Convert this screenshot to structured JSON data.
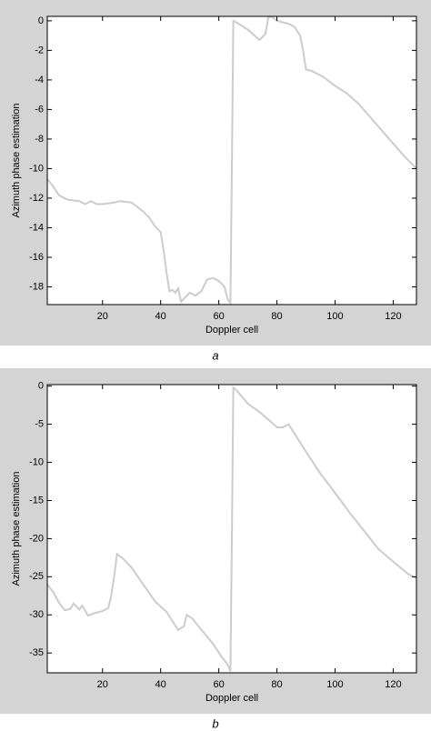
{
  "chart_data": [
    {
      "type": "line",
      "x_label": "Doppler cell",
      "y_label": "Azimuth phase estimation",
      "caption": "a",
      "xlim": [
        1,
        128
      ],
      "xticks": [
        20,
        40,
        60,
        80,
        100,
        120
      ],
      "ylim": [
        -19.2,
        0.3
      ],
      "yticks": [
        0,
        -2,
        -4,
        -6,
        -8,
        -10,
        -12,
        -14,
        -16,
        -18
      ],
      "color": "#cccccc",
      "x": [
        1,
        3,
        5,
        8,
        12,
        14,
        16,
        18,
        20,
        24,
        26,
        30,
        32,
        34,
        36,
        38,
        40,
        41,
        42,
        43,
        44,
        45,
        46,
        47,
        48,
        50,
        52,
        54,
        56,
        58,
        60,
        62,
        63,
        64,
        64.5,
        65,
        66,
        70,
        74,
        76,
        77,
        78,
        80,
        84,
        86,
        88,
        89,
        90,
        92,
        96,
        100,
        104,
        108,
        112,
        116,
        120,
        124,
        128
      ],
      "values": [
        -10.7,
        -11.2,
        -11.8,
        -12.1,
        -12.2,
        -12.4,
        -12.2,
        -12.4,
        -12.4,
        -12.3,
        -12.2,
        -12.3,
        -12.6,
        -12.9,
        -13.3,
        -13.9,
        -14.3,
        -15.5,
        -17,
        -18.3,
        -18.2,
        -18.4,
        -18.1,
        -19.0,
        -18.8,
        -18.4,
        -18.6,
        -18.3,
        -17.5,
        -17.4,
        -17.6,
        -18.0,
        -18.8,
        -19.1,
        -10,
        0,
        -0.1,
        -0.6,
        -1.3,
        -0.9,
        0.2,
        0.3,
        0.0,
        -0.2,
        -0.4,
        -1.0,
        -2,
        -3.3,
        -3.4,
        -3.8,
        -4.4,
        -4.9,
        -5.6,
        -6.5,
        -7.4,
        -8.3,
        -9.2,
        -10.0
      ]
    },
    {
      "type": "line",
      "x_label": "Doppler cell",
      "y_label": "Azimuth phase estimation",
      "caption": "b",
      "xlim": [
        1,
        128
      ],
      "xticks": [
        20,
        40,
        60,
        80,
        100,
        120
      ],
      "ylim": [
        -37.6,
        0.2
      ],
      "yticks": [
        0,
        -5,
        -10,
        -15,
        -20,
        -25,
        -30,
        -35
      ],
      "color": "#cccccc",
      "x": [
        1,
        3,
        5,
        7,
        9,
        10,
        12,
        13,
        15,
        17,
        20,
        22,
        23,
        24,
        25,
        27,
        30,
        34,
        38,
        42,
        44,
        46,
        48,
        49,
        51,
        53,
        55,
        58,
        61,
        63,
        64,
        64.5,
        65,
        66,
        70,
        74,
        78,
        80,
        82,
        84,
        85,
        90,
        95,
        100,
        105,
        110,
        115,
        120,
        125,
        128
      ],
      "values": [
        -26,
        -27,
        -28.4,
        -29.4,
        -29.2,
        -28.5,
        -29.3,
        -28.8,
        -30.1,
        -29.8,
        -29.5,
        -29.1,
        -27.5,
        -25,
        -22,
        -22.6,
        -23.8,
        -26,
        -28.2,
        -29.6,
        -30.8,
        -32,
        -31.5,
        -30,
        -30.5,
        -31.5,
        -32.4,
        -33.8,
        -35.5,
        -36.5,
        -37.4,
        -20,
        -0.2,
        -0.5,
        -2.3,
        -3.4,
        -4.7,
        -5.4,
        -5.4,
        -5.0,
        -5.6,
        -8.6,
        -11.5,
        -14.0,
        -16.6,
        -19.0,
        -21.4,
        -23.0,
        -24.6,
        -25.2
      ]
    }
  ]
}
